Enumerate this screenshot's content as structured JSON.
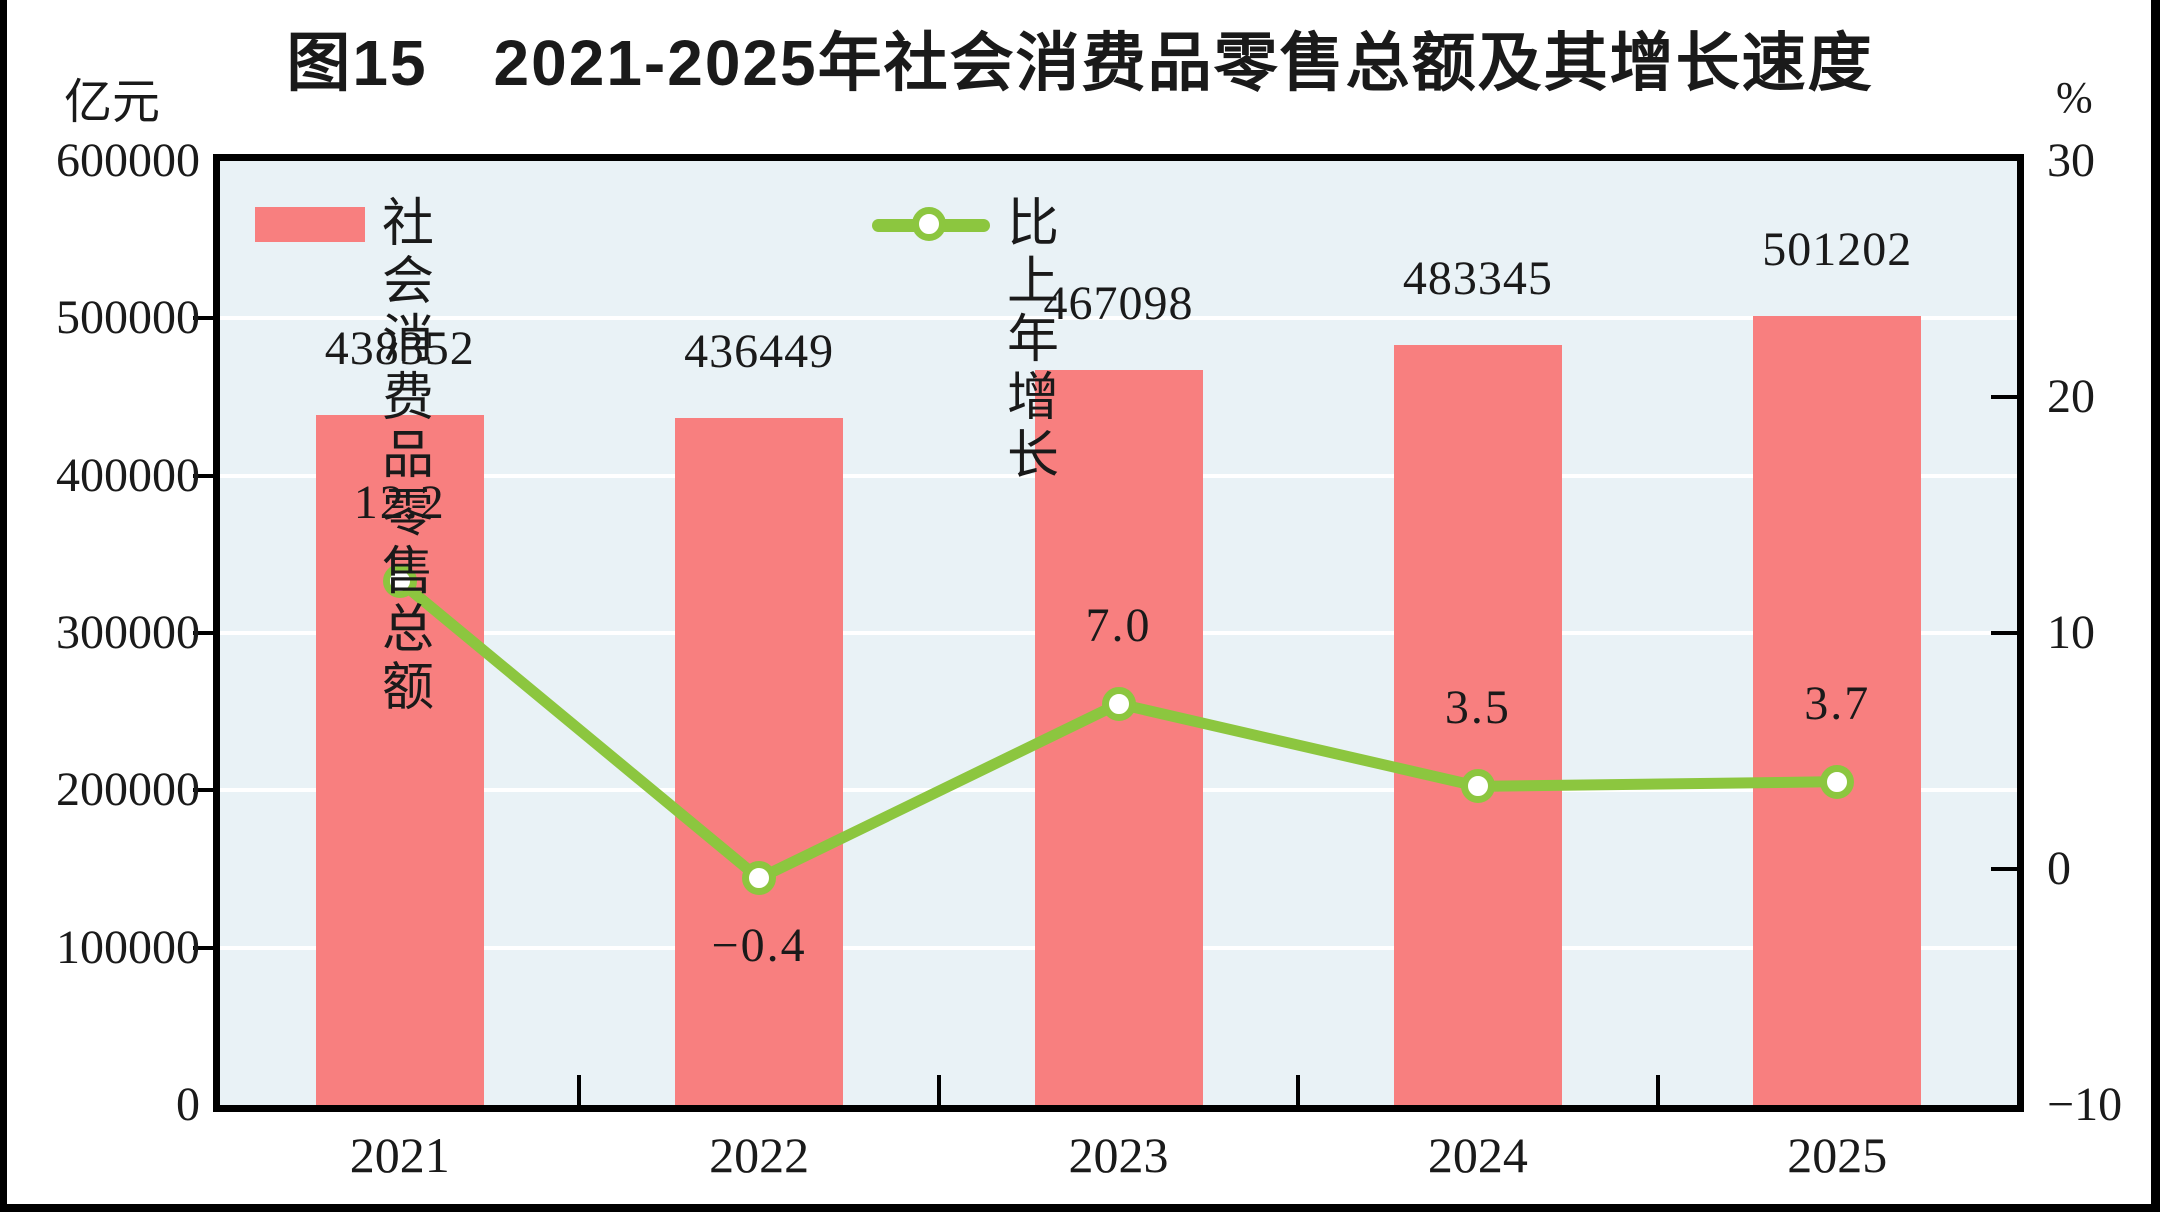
{
  "title": "图15　2021-2025年社会消费品零售总额及其增长速度",
  "left_unit": "亿元",
  "right_unit": "%",
  "legend": {
    "bar_label": "社会消费品零售总额",
    "line_label": "比上年增长"
  },
  "colors": {
    "bar": "#F87F7F",
    "line": "#8CC63F",
    "plot_bg": "#E9F2F6",
    "grid": "#FFFFFF",
    "text": "#1A1A1A",
    "border": "#000000"
  },
  "chart_data": {
    "type": "bar+line",
    "title": "图15　2021-2025年社会消费品零售总额及其增长速度",
    "categories": [
      "2021",
      "2022",
      "2023",
      "2024",
      "2025"
    ],
    "series": [
      {
        "name": "社会消费品零售总额",
        "type": "bar",
        "axis": "left",
        "values": [
          438352,
          436449,
          467098,
          483345,
          501202
        ],
        "labels": [
          "438352",
          "436449",
          "467098",
          "483345",
          "501202"
        ],
        "color": "#F87F7F"
      },
      {
        "name": "比上年增长",
        "type": "line",
        "axis": "right",
        "values": [
          12.2,
          -0.4,
          7.0,
          3.5,
          3.7
        ],
        "labels": [
          "12.2",
          "-0.4",
          "7.0",
          "3.5",
          "3.7"
        ],
        "color": "#8CC63F"
      }
    ],
    "left_axis": {
      "label": "亿元",
      "min": 0,
      "max": 600000,
      "tick_step": 100000,
      "tick_labels": [
        "600000",
        "500000",
        "400000",
        "300000",
        "200000",
        "100000",
        "0"
      ]
    },
    "right_axis": {
      "label": "%",
      "min": -10,
      "max": 30,
      "tick_step": 10,
      "tick_labels": [
        "30",
        "20",
        "10",
        "0",
        "-10"
      ],
      "inner_tick_values": [
        20,
        10,
        0
      ]
    },
    "grid": "horizontal-white-lines-at-left-ticks",
    "legend_position": "top-left-inside"
  }
}
